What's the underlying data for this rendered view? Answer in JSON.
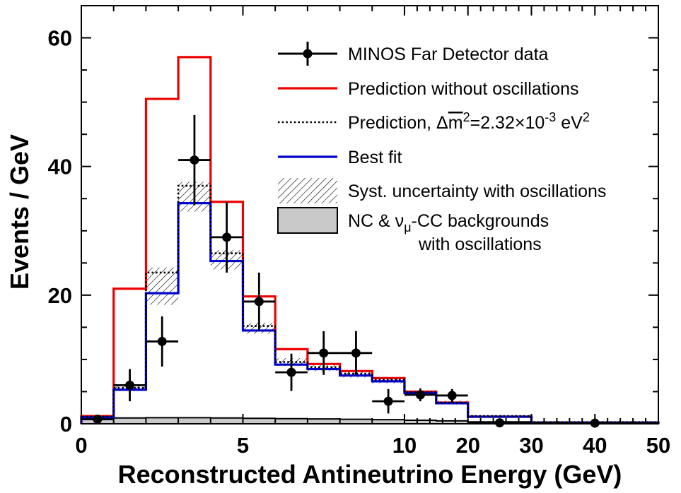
{
  "chart_data": {
    "type": "bar",
    "subtype": "overlaid-step-histograms-with-data-points",
    "title": "",
    "xlabel": "Reconstructed Antineutrino Energy (GeV)",
    "ylabel": "Events / GeV",
    "xlim": [
      0,
      50
    ],
    "ylim": [
      0,
      65
    ],
    "grid": false,
    "legend_position": "top-right-inside",
    "x_scale": {
      "note": "piecewise linear axis: 0-10 GeV expanded, 10-50 GeV compressed",
      "segments": [
        {
          "x0": 0,
          "x1": 10,
          "f0": 0.0,
          "f1": 0.56
        },
        {
          "x0": 10,
          "x1": 50,
          "f0": 0.56,
          "f1": 1.0
        }
      ]
    },
    "x_ticks": [
      {
        "v": 0,
        "label": "0"
      },
      {
        "v": 5,
        "label": "5"
      },
      {
        "v": 10,
        "label": "10"
      },
      {
        "v": 20,
        "label": "20"
      },
      {
        "v": 30,
        "label": "30"
      },
      {
        "v": 40,
        "label": "40"
      },
      {
        "v": 50,
        "label": "50"
      }
    ],
    "x_minor": [
      1,
      2,
      3,
      4,
      6,
      7,
      8,
      9,
      12,
      14,
      16,
      18,
      22,
      24,
      26,
      28,
      32,
      34,
      36,
      38,
      42,
      44,
      46,
      48
    ],
    "y_ticks": [
      {
        "v": 0,
        "label": "0"
      },
      {
        "v": 20,
        "label": "20"
      },
      {
        "v": 40,
        "label": "40"
      },
      {
        "v": 60,
        "label": "60"
      }
    ],
    "y_minor": [
      5,
      10,
      15,
      25,
      30,
      35,
      45,
      50,
      55
    ],
    "bin_edges": [
      0,
      1,
      2,
      3,
      4,
      5,
      6,
      7,
      8,
      9,
      10,
      15,
      20,
      30,
      50
    ],
    "series": [
      {
        "id": "backgrounds",
        "name": "NC & νμ-CC backgrounds with oscillations",
        "type": "filled-step",
        "color": "#c9c9c9",
        "stroke": "#000000",
        "values": [
          0.9,
          0.9,
          0.95,
          0.95,
          0.9,
          0.85,
          0.8,
          0.75,
          0.7,
          0.65,
          0.55,
          0.45,
          0.3,
          0.05
        ]
      },
      {
        "id": "syst-band",
        "name": "Syst. uncertainty with oscillations",
        "type": "hatched-band",
        "color": "#000000",
        "lo": [
          0.9,
          5.1,
          18.5,
          33.0,
          24.0,
          14.0,
          9.0,
          8.2,
          7.2,
          6.3,
          4.5,
          3.0,
          1.0,
          0.15
        ],
        "hi": [
          1.25,
          6.1,
          24.3,
          37.6,
          27.0,
          15.7,
          10.2,
          9.4,
          8.3,
          7.3,
          5.2,
          3.6,
          1.35,
          0.3
        ]
      },
      {
        "id": "no-osc",
        "name": "Prediction without oscillations",
        "type": "step",
        "color": "#ee0000",
        "values": [
          1.2,
          21.0,
          50.5,
          57.0,
          34.5,
          19.8,
          11.6,
          9.3,
          8.2,
          7.1,
          5.0,
          3.3,
          1.1,
          0.2
        ]
      },
      {
        "id": "best-fit",
        "name": "Best fit",
        "type": "step",
        "color": "#0000cd",
        "values": [
          1.0,
          5.3,
          20.3,
          34.3,
          25.3,
          14.5,
          9.2,
          8.5,
          7.5,
          6.6,
          4.8,
          3.2,
          1.1,
          0.2
        ]
      },
      {
        "id": "pred-osc",
        "name": "Prediction, Δm²=2.32×10⁻³ eV²",
        "type": "step-dotted",
        "color": "#000000",
        "values": [
          1.1,
          5.6,
          23.5,
          37.0,
          26.5,
          15.2,
          9.6,
          8.8,
          7.8,
          6.9,
          4.9,
          3.3,
          1.2,
          0.25
        ]
      }
    ],
    "data_points": {
      "name": "MINOS Far Detector data",
      "color": "#000000",
      "x": [
        0.5,
        1.5,
        2.5,
        3.5,
        4.5,
        5.5,
        6.5,
        7.5,
        8.5,
        9.5,
        12.5,
        17.5,
        25,
        40
      ],
      "y": [
        0.7,
        6.0,
        12.8,
        41.0,
        29.0,
        19.0,
        8.0,
        11.0,
        11.0,
        3.5,
        4.5,
        4.4,
        0.15,
        0.1
      ],
      "yerr": [
        0.7,
        2.5,
        3.9,
        7.0,
        5.5,
        4.5,
        2.9,
        3.4,
        3.4,
        1.9,
        1.0,
        1.0,
        0.15,
        0.12
      ],
      "xerr": [
        0.5,
        0.5,
        0.5,
        0.5,
        0.5,
        0.5,
        0.5,
        0.5,
        0.5,
        0.5,
        2.5,
        2.5,
        5,
        10
      ]
    }
  },
  "legend": {
    "entries": [
      {
        "id": "data",
        "sample": "marker",
        "color": "#000000",
        "label": [
          {
            "t": "MINOS Far Detector data"
          }
        ]
      },
      {
        "id": "no-osc",
        "sample": "line",
        "color": "#ee0000",
        "label": [
          {
            "t": "Prediction without oscillations"
          }
        ]
      },
      {
        "id": "pred-osc",
        "sample": "dotted-line",
        "color": "#000000",
        "label": [
          {
            "t": "Prediction, Δ"
          },
          {
            "t": "m",
            "ov": true
          },
          {
            "t": "2",
            "sup": true
          },
          {
            "t": "=2.32×10"
          },
          {
            "t": "-3",
            "sup": true
          },
          {
            "t": " eV"
          },
          {
            "t": "2",
            "sup": true
          }
        ]
      },
      {
        "id": "best-fit",
        "sample": "line",
        "color": "#0000cd",
        "label": [
          {
            "t": "Best fit"
          }
        ]
      },
      {
        "id": "syst",
        "sample": "hatch",
        "color": "#000000",
        "label": [
          {
            "t": "Syst. uncertainty with oscillations"
          }
        ]
      },
      {
        "id": "backgrounds",
        "sample": "gray-box",
        "color": "#c9c9c9",
        "label": [
          {
            "t": "NC & ν"
          },
          {
            "t": "μ",
            "sub": true
          },
          {
            "t": "-CC backgrounds"
          }
        ],
        "label2": [
          {
            "t": "with oscillations"
          }
        ]
      }
    ]
  }
}
